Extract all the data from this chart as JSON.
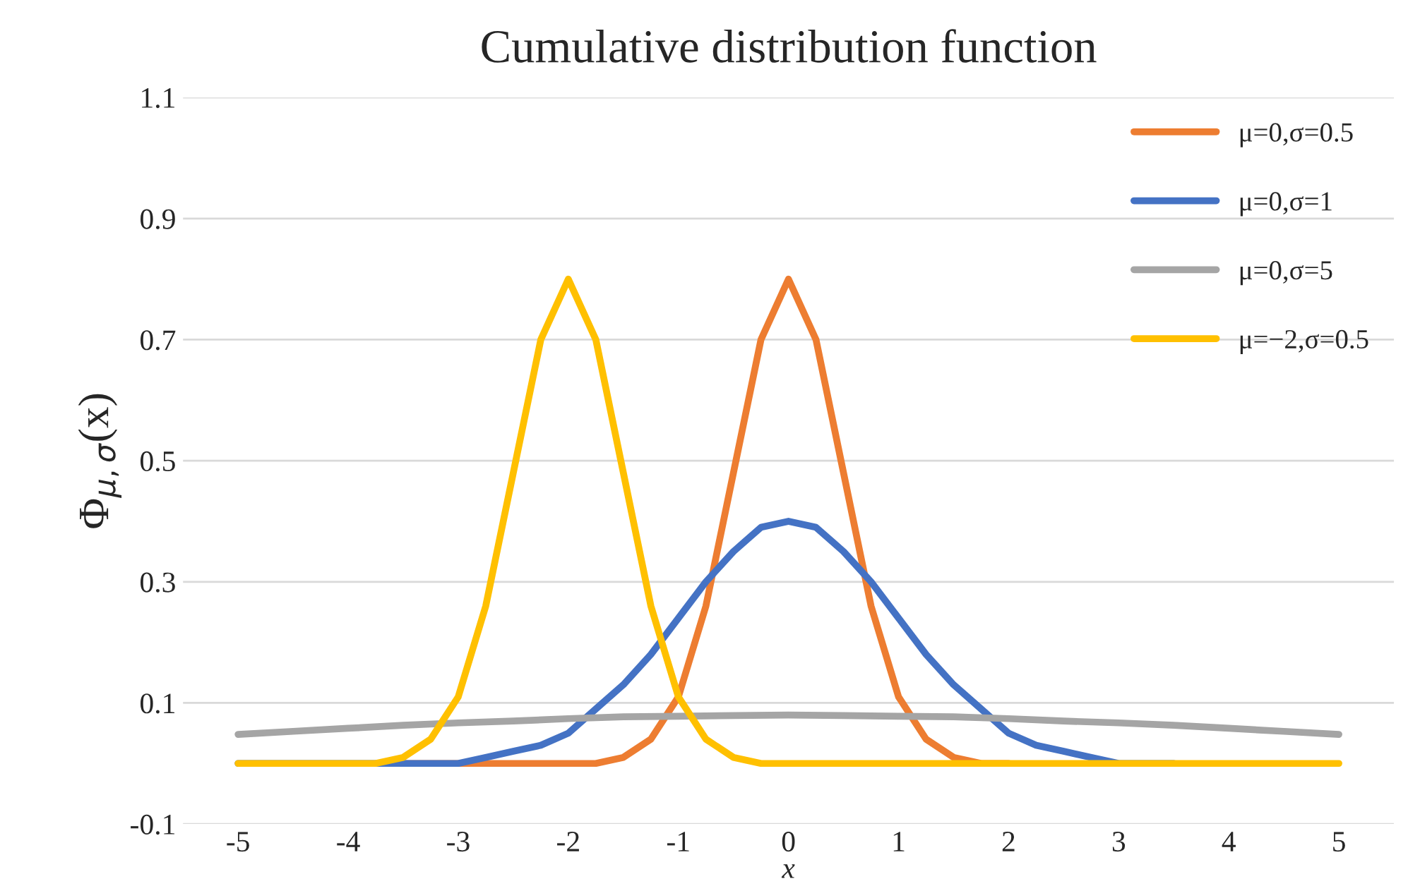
{
  "chart_data": {
    "type": "line",
    "title": "Cumulative distribution function",
    "xlabel": "x",
    "ylabel": "Φ$_{μ,σ}$(x)",
    "xlim": [
      -5.5,
      5.5
    ],
    "xticks": [
      -5,
      -4,
      -3,
      -2,
      -1,
      0,
      1,
      2,
      3,
      4,
      5
    ],
    "ylim": [
      -0.1,
      1.1
    ],
    "yticks": [
      -0.1,
      0.1,
      0.3,
      0.5,
      0.7,
      0.9,
      1.1
    ],
    "grid": "y",
    "legend": "top right",
    "line_style": "solid",
    "series": [
      {
        "name": "μ=0,σ=0.5",
        "color": "#ed7d31",
        "x": [
          -3.5,
          -3,
          -2.5,
          -2,
          -1.75,
          -1.5,
          -1.25,
          -1,
          -0.75,
          -0.5,
          -0.25,
          0,
          0.25,
          0.5,
          0.75,
          1,
          1.25,
          1.5,
          1.75,
          2
        ],
        "values": [
          0,
          0,
          0,
          0,
          0,
          0.01,
          0.04,
          0.11,
          0.26,
          0.48,
          0.7,
          0.8,
          0.7,
          0.48,
          0.26,
          0.11,
          0.04,
          0.01,
          0,
          0
        ]
      },
      {
        "name": "μ=0,σ=1",
        "color": "#4472c4",
        "x": [
          -5,
          -4.5,
          -4,
          -3.5,
          -3,
          -2.75,
          -2.5,
          -2.25,
          -2,
          -1.75,
          -1.5,
          -1.25,
          -1,
          -0.75,
          -0.5,
          -0.25,
          0,
          0.25,
          0.5,
          0.75,
          1,
          1.25,
          1.5,
          1.75,
          2,
          2.25,
          2.5,
          2.75,
          3,
          3.5
        ],
        "values": [
          0,
          0,
          0,
          0,
          0,
          0.01,
          0.02,
          0.03,
          0.05,
          0.09,
          0.13,
          0.18,
          0.24,
          0.3,
          0.35,
          0.39,
          0.4,
          0.39,
          0.35,
          0.3,
          0.24,
          0.18,
          0.13,
          0.09,
          0.05,
          0.03,
          0.02,
          0.01,
          0,
          0
        ]
      },
      {
        "name": "μ=0,σ=5",
        "color": "#a5a5a5",
        "x": [
          -5,
          -4.5,
          -4,
          -3.5,
          -3,
          -2.5,
          -2,
          -1.5,
          -1,
          -0.5,
          0,
          0.5,
          1,
          1.5,
          2,
          2.5,
          3,
          3.5,
          4,
          4.5,
          5
        ],
        "values": [
          0.048,
          0.053,
          0.058,
          0.063,
          0.067,
          0.07,
          0.074,
          0.077,
          0.078,
          0.079,
          0.08,
          0.079,
          0.078,
          0.077,
          0.074,
          0.07,
          0.067,
          0.063,
          0.058,
          0.053,
          0.048
        ]
      },
      {
        "name": "μ=−2,σ=0.5",
        "color": "#ffc000",
        "x": [
          -5,
          -4.5,
          -4,
          -3.75,
          -3.5,
          -3.25,
          -3,
          -2.75,
          -2.5,
          -2.25,
          -2,
          -1.75,
          -1.5,
          -1.25,
          -1,
          -0.75,
          -0.5,
          -0.25,
          0,
          0.5,
          1,
          1.5,
          2,
          2.5,
          3,
          3.5,
          4,
          4.5,
          5
        ],
        "values": [
          0,
          0,
          0,
          0,
          0.01,
          0.04,
          0.11,
          0.26,
          0.48,
          0.7,
          0.8,
          0.7,
          0.48,
          0.26,
          0.11,
          0.04,
          0.01,
          0,
          0,
          0,
          0,
          0,
          0,
          0,
          0,
          0,
          0,
          0,
          0
        ]
      }
    ]
  }
}
